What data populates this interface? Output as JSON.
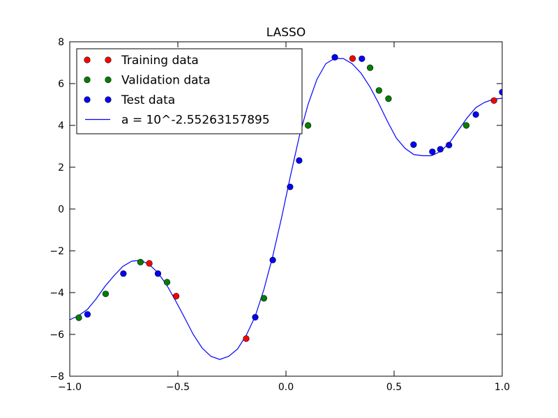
{
  "chart_data": {
    "type": "scatter",
    "title": "LASSO",
    "xlabel": "",
    "ylabel": "",
    "xlim": [
      -1.0,
      1.0
    ],
    "ylim": [
      -8,
      8
    ],
    "x_ticks": [
      -1.0,
      -0.5,
      0.0,
      0.5,
      1.0
    ],
    "x_tick_labels": [
      "−1.0",
      "−0.5",
      "0.0",
      "0.5",
      "1.0"
    ],
    "y_ticks": [
      -8,
      -6,
      -4,
      -2,
      0,
      2,
      4,
      6,
      8
    ],
    "y_tick_labels": [
      "−8",
      "−6",
      "−4",
      "−2",
      "0",
      "2",
      "4",
      "6",
      "8"
    ],
    "grid": false,
    "legend_position": "top-left",
    "series": [
      {
        "name": "Training data",
        "kind": "points",
        "color": "#ff0000",
        "x": [
          -0.632,
          -0.508,
          -0.184,
          0.308,
          0.962
        ],
        "y": [
          -2.6,
          -4.17,
          -6.2,
          7.2,
          5.19
        ]
      },
      {
        "name": "Validation data",
        "kind": "points",
        "color": "#008000",
        "x": [
          -0.958,
          -0.834,
          -0.673,
          -0.55,
          -0.102,
          0.102,
          0.389,
          0.43,
          0.474,
          0.834
        ],
        "y": [
          -5.2,
          -4.06,
          -2.54,
          -3.5,
          -4.27,
          4.0,
          6.76,
          5.67,
          5.28,
          4.0
        ]
      },
      {
        "name": "Test data",
        "kind": "points",
        "color": "#0000ff",
        "x": [
          -0.918,
          -0.752,
          -0.592,
          -0.142,
          -0.061,
          0.019,
          0.061,
          0.226,
          0.351,
          0.59,
          0.677,
          0.714,
          0.754,
          0.878,
          1.0
        ],
        "y": [
          -5.04,
          -3.09,
          -3.09,
          -5.18,
          -2.44,
          1.06,
          2.32,
          7.26,
          7.19,
          3.08,
          2.74,
          2.86,
          3.06,
          4.52,
          5.59
        ]
      },
      {
        "name": "a = 10^-2.55263157895",
        "kind": "line",
        "color": "#0000ff",
        "x": [
          -1.0,
          -0.959,
          -0.918,
          -0.878,
          -0.837,
          -0.796,
          -0.755,
          -0.714,
          -0.673,
          -0.633,
          -0.592,
          -0.551,
          -0.51,
          -0.469,
          -0.429,
          -0.388,
          -0.347,
          -0.306,
          -0.265,
          -0.224,
          -0.184,
          -0.143,
          -0.102,
          -0.061,
          -0.02,
          0.02,
          0.061,
          0.102,
          0.143,
          0.184,
          0.224,
          0.265,
          0.306,
          0.347,
          0.388,
          0.429,
          0.469,
          0.51,
          0.551,
          0.592,
          0.633,
          0.673,
          0.714,
          0.755,
          0.796,
          0.837,
          0.878,
          0.918,
          0.959,
          1.0
        ],
        "y": [
          -5.3,
          -5.1,
          -4.8,
          -4.3,
          -3.7,
          -3.2,
          -2.75,
          -2.5,
          -2.45,
          -2.65,
          -3.05,
          -3.65,
          -4.4,
          -5.2,
          -6.0,
          -6.65,
          -7.05,
          -7.2,
          -7.05,
          -6.7,
          -6.05,
          -5.15,
          -3.85,
          -2.25,
          -0.4,
          1.55,
          3.45,
          5.0,
          6.2,
          6.95,
          7.2,
          7.2,
          6.95,
          6.5,
          5.85,
          5.05,
          4.2,
          3.4,
          2.9,
          2.6,
          2.55,
          2.55,
          2.75,
          3.15,
          3.75,
          4.35,
          4.85,
          5.1,
          5.25,
          5.3
        ]
      }
    ]
  }
}
